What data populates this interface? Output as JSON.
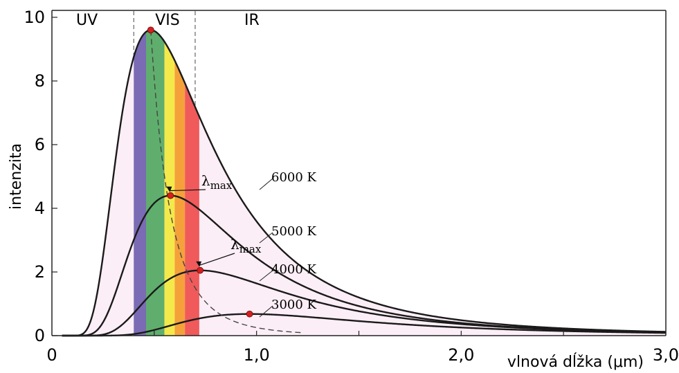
{
  "chart_data": {
    "type": "line",
    "xlabel": "vlnová dĺžka (μm)",
    "ylabel": "intenzita",
    "xlim": [
      0,
      3.0
    ],
    "ylim": [
      0,
      10
    ],
    "x_ticks": [
      "0",
      "1,0",
      "2,0",
      "3,0"
    ],
    "y_ticks": [
      "0",
      "2",
      "4",
      "6",
      "8",
      "10"
    ],
    "grid": false,
    "regions": [
      {
        "label": "UV",
        "x_range": [
          0,
          0.4
        ]
      },
      {
        "label": "VIS",
        "x_range": [
          0.4,
          0.7
        ]
      },
      {
        "label": "IR",
        "x_range": [
          0.7,
          3.0
        ]
      }
    ],
    "visible_bands": [
      {
        "x_range": [
          0.4,
          0.46
        ],
        "color": "#7b6bb5"
      },
      {
        "x_range": [
          0.46,
          0.55
        ],
        "color": "#5fae6d"
      },
      {
        "x_range": [
          0.55,
          0.6
        ],
        "color": "#f4e94a"
      },
      {
        "x_range": [
          0.6,
          0.65
        ],
        "color": "#f5a13a"
      },
      {
        "x_range": [
          0.65,
          0.72
        ],
        "color": "#f05a5a"
      }
    ],
    "series": [
      {
        "name": "6000 K",
        "temperature": 6000,
        "peak": {
          "x": 0.55,
          "y": 9.6
        }
      },
      {
        "name": "5000 K",
        "temperature": 5000,
        "peak": {
          "x": 0.72,
          "y": 4.4
        }
      },
      {
        "name": "4000 K",
        "temperature": 4000,
        "peak": {
          "x": 0.88,
          "y": 2.05
        }
      },
      {
        "name": "3000 K",
        "temperature": 3000,
        "peak": {
          "x": 1.2,
          "y": 0.68
        }
      }
    ],
    "annotations": [
      {
        "text": "λ",
        "sub": "max",
        "target": "5000 K"
      },
      {
        "text": "λ",
        "sub": "max",
        "target": "4000 K"
      }
    ],
    "wien_line": "dashed",
    "fill_under": "6000 K",
    "colors": {
      "fill": "#fceef6",
      "curve": "#1a1a1a",
      "peak": "#d42020"
    }
  }
}
